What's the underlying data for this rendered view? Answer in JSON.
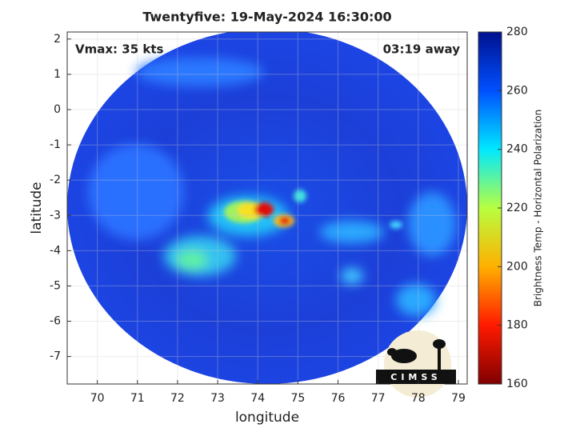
{
  "chart_data": {
    "type": "image",
    "title": "Twentyfive: 19-May-2024 16:30:00",
    "xlabel": "longitude",
    "ylabel": "latitude",
    "xlim": [
      69.25,
      79.22
    ],
    "ylim": [
      -7.78,
      2.2
    ],
    "xticks": [
      70,
      71,
      72,
      73,
      74,
      75,
      76,
      77,
      78,
      79
    ],
    "yticks": [
      -7,
      -6,
      -5,
      -4,
      -3,
      -2,
      -1,
      0,
      1,
      2
    ],
    "grid": true,
    "annotations": [
      "Vmax: 35 kts",
      "03:19 away"
    ],
    "logo": "CIMSS",
    "colorbar": {
      "label": "Brightness Temp - Horizontal Polarization",
      "lim": [
        160,
        280
      ],
      "ticks": [
        160,
        180,
        200,
        220,
        240,
        260,
        280
      ],
      "colors": [
        "#800000",
        "#ff1a00",
        "#ffb000",
        "#b8ff40",
        "#00e8ff",
        "#0050ff",
        "#00108f"
      ]
    }
  }
}
